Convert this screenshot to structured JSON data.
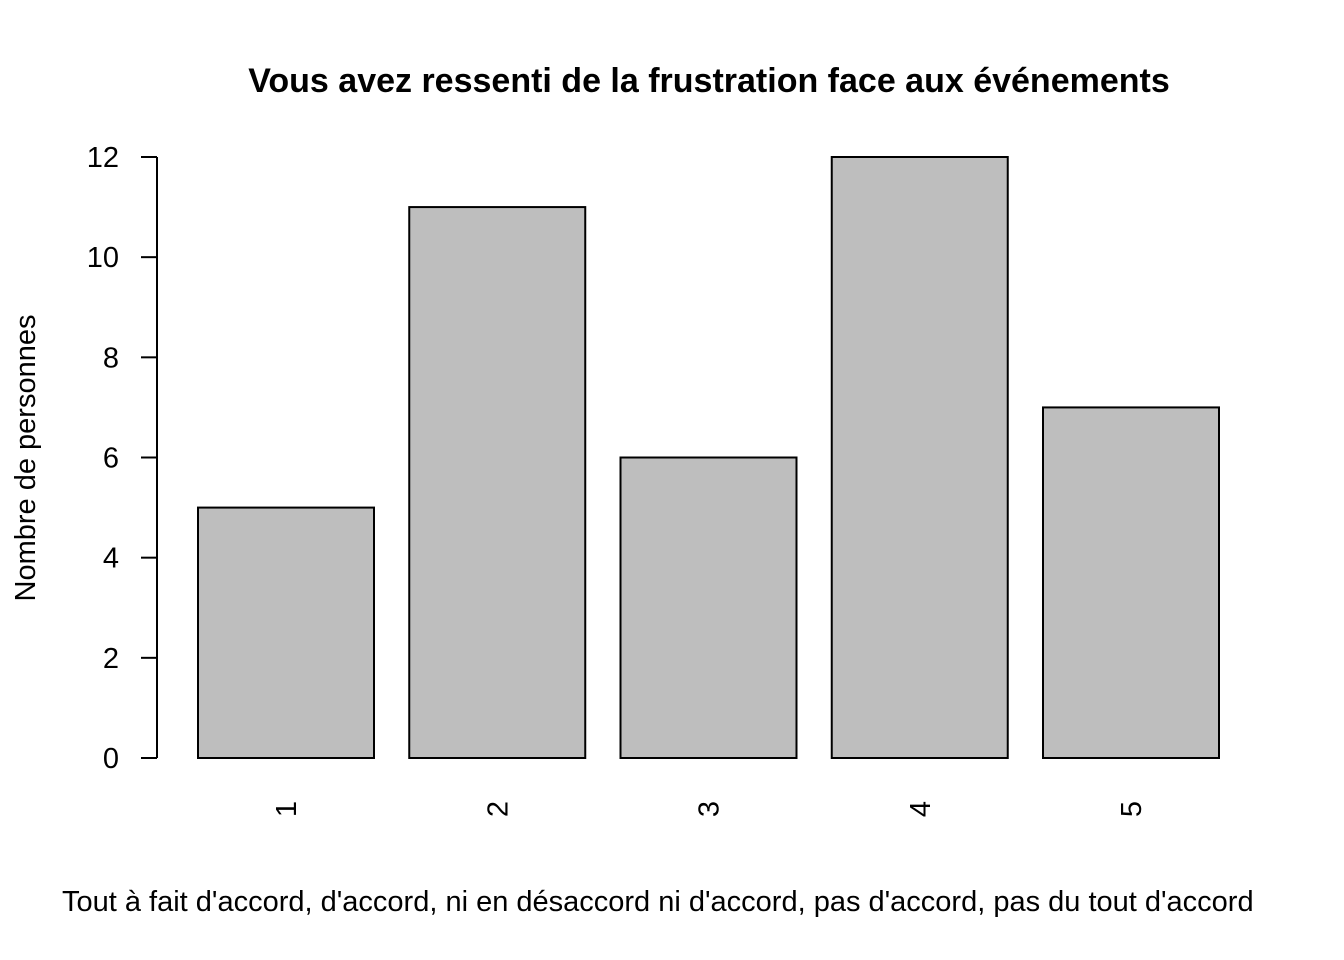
{
  "chart_data": {
    "type": "bar",
    "title": "Vous avez ressenti de la frustration face aux événements",
    "xlabel": "Tout à fait d'accord, d'accord, ni en désaccord ni d'accord, pas d'accord, pas du tout d'accord",
    "ylabel": "Nombre de personnes",
    "categories": [
      "1",
      "2",
      "3",
      "4",
      "5"
    ],
    "values": [
      5,
      11,
      6,
      12,
      7
    ],
    "ylim": [
      0,
      12
    ],
    "yticks": [
      0,
      2,
      4,
      6,
      8,
      10,
      12
    ],
    "grid": false,
    "bar_color": "#bebebe",
    "bar_border_color": "#000000",
    "x_tick_label_orientation": "vertical"
  }
}
